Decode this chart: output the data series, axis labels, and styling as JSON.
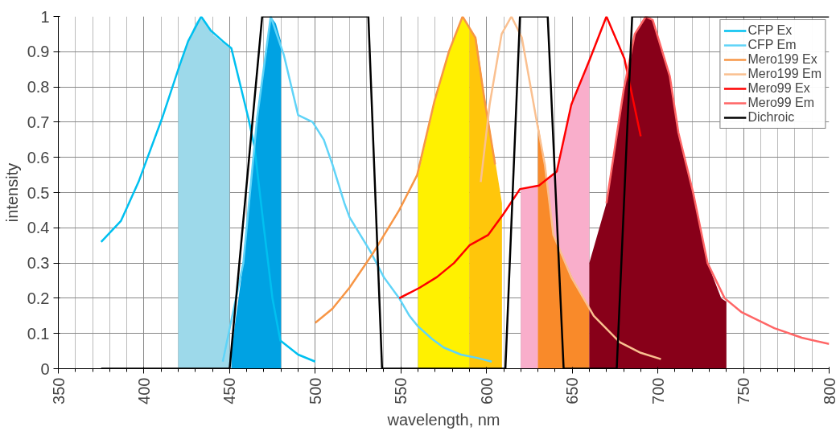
{
  "chart_data": {
    "type": "line",
    "xlabel": "wavelength, nm",
    "ylabel": "intensity",
    "xlim": [
      350,
      800
    ],
    "ylim": [
      0,
      1
    ],
    "xticks": [
      350,
      400,
      450,
      500,
      550,
      600,
      650,
      700,
      750,
      800
    ],
    "yticks": [
      0,
      0.1,
      0.2,
      0.3,
      0.4,
      0.5,
      0.6,
      0.7,
      0.8,
      0.9,
      1
    ],
    "grid": true,
    "legend": "top right",
    "line_style": "solid",
    "marker": "none",
    "series": [
      {
        "type": "area",
        "color": "#9dd9ea",
        "x": [
          420,
          425,
          430,
          433,
          435,
          440,
          445,
          450
        ],
        "values": [
          0.85,
          0.92,
          0.98,
          1.0,
          0.99,
          0.95,
          0.93,
          0.91
        ]
      },
      {
        "type": "area",
        "color": "#00a2e3",
        "x": [
          451,
          458,
          466,
          474,
          477,
          480
        ],
        "values": [
          0.05,
          0.3,
          0.71,
          1.0,
          0.98,
          0.93
        ]
      },
      {
        "type": "area",
        "color": "#fff100",
        "x": [
          560,
          570,
          578,
          586,
          590
        ],
        "values": [
          0.55,
          0.76,
          0.9,
          1.0,
          0.97
        ]
      },
      {
        "type": "area",
        "color": "#ffc60b",
        "x": [
          590,
          594,
          599,
          605,
          609
        ],
        "values": [
          0.97,
          0.94,
          0.77,
          0.59,
          0.47
        ]
      },
      {
        "type": "area",
        "color": "#f9aecb",
        "x": [
          620,
          630,
          641,
          650,
          660
        ],
        "values": [
          0.51,
          0.52,
          0.56,
          0.75,
          0.87
        ]
      },
      {
        "type": "area",
        "color": "#f98a2a",
        "x": [
          630,
          634,
          639,
          650,
          660
        ],
        "values": [
          0.7,
          0.58,
          0.38,
          0.26,
          0.17
        ]
      },
      {
        "type": "area",
        "color": "#880019",
        "x": [
          660,
          670,
          675,
          680,
          686.5,
          693,
          697,
          702,
          707,
          712,
          720.6,
          729,
          737,
          740
        ],
        "values": [
          0.3,
          0.47,
          0.63,
          0.79,
          0.95,
          1.0,
          0.99,
          0.91,
          0.83,
          0.67,
          0.5,
          0.3,
          0.2,
          0.19
        ]
      },
      {
        "name": "CFP Ex",
        "color": "#00c0f0",
        "x": [
          375,
          386.6,
          396.8,
          410.5,
          420.7,
          425.8,
          433.4,
          439,
          446,
          451,
          461,
          464.5,
          470,
          475,
          479.6,
          490,
          500
        ],
        "values": [
          0.36,
          0.42,
          0.53,
          0.71,
          0.86,
          0.93,
          1.0,
          0.96,
          0.93,
          0.91,
          0.71,
          0.63,
          0.4,
          0.2,
          0.08,
          0.04,
          0.02
        ]
      },
      {
        "name": "CFP Em",
        "color": "#60d4f8",
        "x": [
          446,
          458,
          466,
          474,
          481.7,
          490,
          498.5,
          505,
          510,
          517,
          520,
          532.5,
          540,
          549,
          555,
          560,
          568,
          575,
          585,
          595,
          603
        ],
        "values": [
          0.02,
          0.3,
          0.71,
          1.0,
          0.89,
          0.72,
          0.7,
          0.65,
          0.58,
          0.47,
          0.43,
          0.33,
          0.26,
          0.2,
          0.15,
          0.12,
          0.085,
          0.06,
          0.04,
          0.03,
          0.02
        ]
      },
      {
        "name": "Mero199 Ex",
        "color": "#f79646",
        "x": [
          500,
          510,
          520,
          534,
          549,
          559.5,
          569.6,
          578,
          586,
          593.5,
          598.6,
          605
        ],
        "values": [
          0.13,
          0.17,
          0.23,
          0.33,
          0.45,
          0.55,
          0.76,
          0.9,
          1.0,
          0.94,
          0.77,
          0.58
        ]
      },
      {
        "name": "Mero199 Em",
        "color": "#fac090",
        "x": [
          596.6,
          601.8,
          608.8,
          614.5,
          620.6,
          629,
          634,
          639,
          649.5,
          662.6,
          677.8,
          690,
          701.8
        ],
        "values": [
          0.53,
          0.75,
          0.95,
          1.0,
          0.94,
          0.71,
          0.58,
          0.38,
          0.26,
          0.15,
          0.075,
          0.045,
          0.027
        ]
      },
      {
        "name": "Mero99 Ex",
        "color": "#ff0000",
        "x": [
          549,
          561,
          571,
          581,
          590,
          601,
          610,
          619.5,
          630.6,
          641,
          649.5,
          660,
          670,
          680.5,
          690
        ],
        "values": [
          0.2,
          0.23,
          0.26,
          0.3,
          0.35,
          0.38,
          0.44,
          0.51,
          0.52,
          0.56,
          0.75,
          0.875,
          1.0,
          0.88,
          0.66
        ]
      },
      {
        "name": "Mero99 Em",
        "color": "#ff6666",
        "x": [
          670,
          675,
          680,
          686.5,
          693,
          697,
          702,
          707,
          712,
          720.6,
          729,
          739,
          749,
          768,
          784,
          800
        ],
        "values": [
          0.47,
          0.63,
          0.79,
          0.95,
          1.0,
          0.99,
          0.91,
          0.83,
          0.67,
          0.5,
          0.3,
          0.2,
          0.16,
          0.115,
          0.088,
          0.07
        ]
      },
      {
        "name": "Dichroic",
        "color": "#000000",
        "x": [
          375,
          450,
          469,
          531,
          539,
          611,
          619.5,
          635.7,
          645,
          676,
          685,
          800
        ],
        "values": [
          0,
          0,
          1,
          1,
          0,
          0,
          1,
          1,
          0,
          0,
          1,
          1
        ]
      }
    ]
  }
}
